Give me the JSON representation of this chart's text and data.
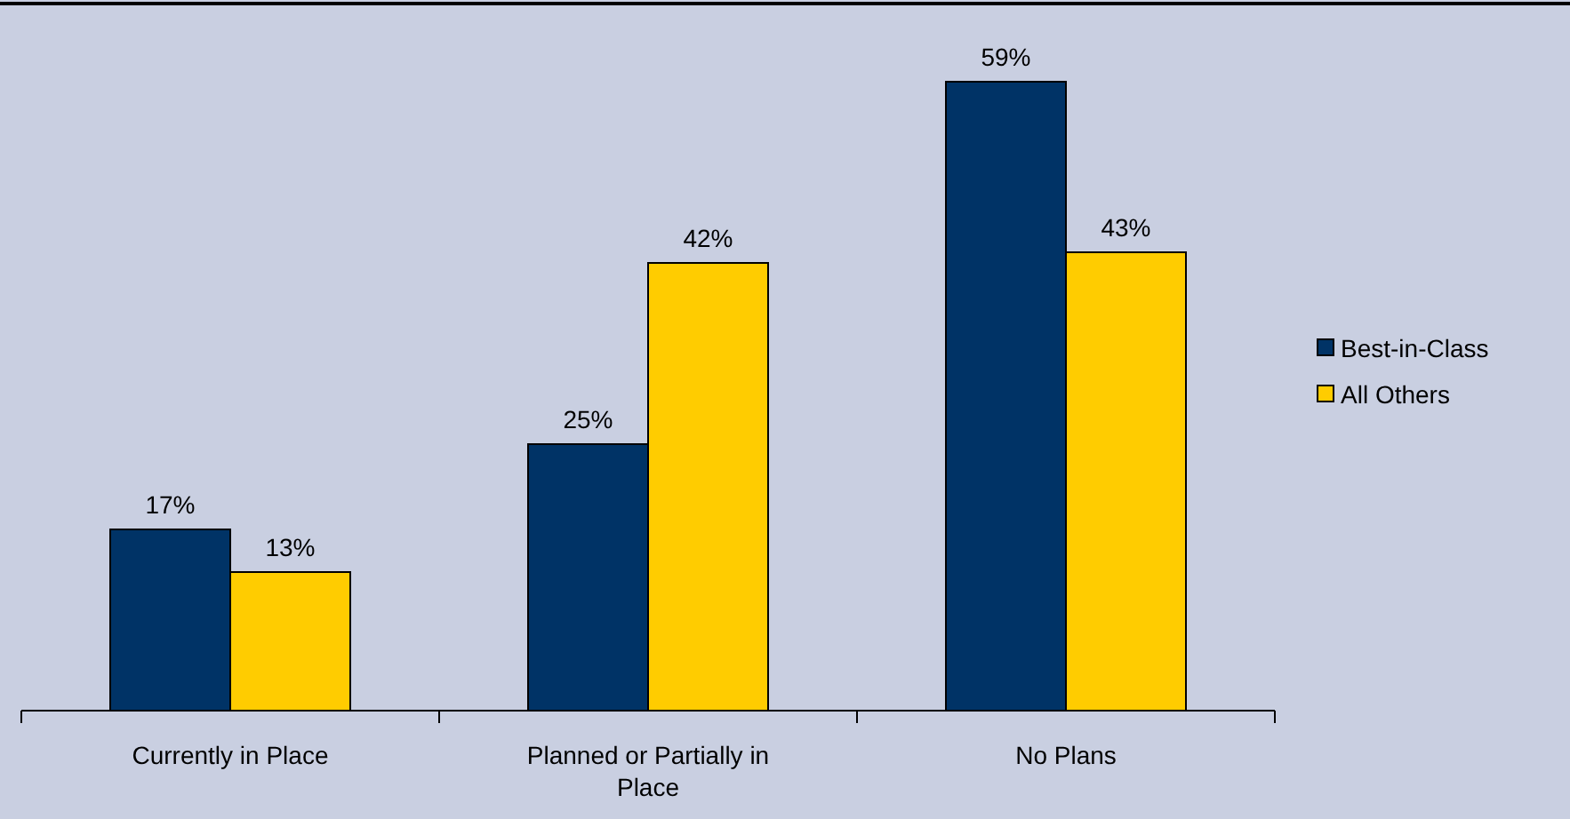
{
  "chart_data": {
    "type": "bar",
    "categories": [
      "Currently in Place",
      "Planned or Partially in Place",
      "No Plans"
    ],
    "series": [
      {
        "name": "Best-in-Class",
        "color": "#003366",
        "values": [
          17,
          25,
          59
        ],
        "value_labels": [
          "17%",
          "25%",
          "59%"
        ]
      },
      {
        "name": "All Others",
        "color": "#ffcc00",
        "values": [
          13,
          42,
          43
        ],
        "value_labels": [
          "13%",
          "42%",
          "43%"
        ]
      }
    ],
    "legend": "right"
  }
}
